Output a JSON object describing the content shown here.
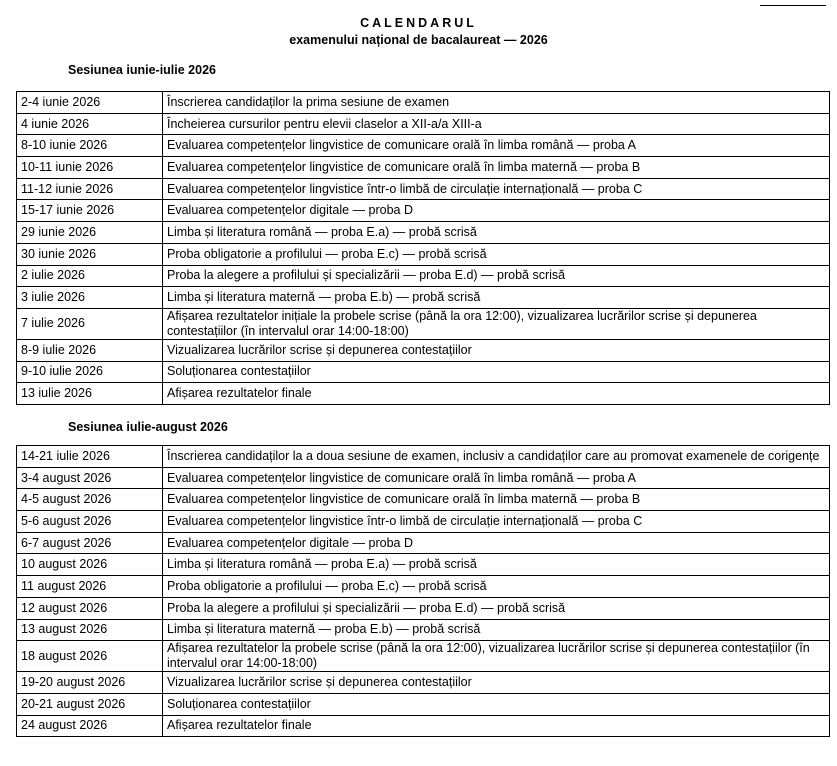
{
  "header": {
    "title": "CALENDARUL",
    "subtitle": "examenului național de bacalaureat — 2026"
  },
  "sessions": [
    {
      "title": "Sesiunea iunie-iulie 2026",
      "rows": [
        {
          "date": "2-4 iunie 2026",
          "event": "Înscrierea candidaților la prima sesiune de examen"
        },
        {
          "date": "4 iunie 2026",
          "event": "Încheierea cursurilor pentru elevii claselor a XII-a/a XIII-a"
        },
        {
          "date": "8-10 iunie 2026",
          "event": "Evaluarea competențelor lingvistice de comunicare orală în limba română — proba A"
        },
        {
          "date": "10-11 iunie 2026",
          "event": "Evaluarea competențelor lingvistice de comunicare orală în limba maternă — proba B"
        },
        {
          "date": "11-12 iunie 2026",
          "event": "Evaluarea competențelor lingvistice într-o limbă de circulație internațională — proba C"
        },
        {
          "date": "15-17 iunie 2026",
          "event": "Evaluarea competențelor digitale — proba D"
        },
        {
          "date": "29 iunie 2026",
          "event": "Limba și literatura română — proba E.a) — probă scrisă"
        },
        {
          "date": "30 iunie 2026",
          "event": "Proba obligatorie a profilului — proba E.c) — probă scrisă"
        },
        {
          "date": "2 iulie 2026",
          "event": "Proba la alegere a profilului și specializării — proba E.d) — probă scrisă"
        },
        {
          "date": "3 iulie 2026",
          "event": "Limba și literatura maternă — proba E.b) — probă scrisă"
        },
        {
          "date": "7 iulie 2026",
          "event": "Afișarea rezultatelor inițiale la probele scrise (până la ora 12:00), vizualizarea lucrărilor scrise și depunerea contestațiilor (în intervalul orar 14:00-18:00)"
        },
        {
          "date": "8-9 iulie 2026",
          "event": "Vizualizarea lucrărilor scrise și depunerea contestațiilor"
        },
        {
          "date": "9-10 iulie 2026",
          "event": "Soluționarea contestațiilor"
        },
        {
          "date": "13 iulie 2026",
          "event": "Afișarea rezultatelor finale"
        }
      ]
    },
    {
      "title": "Sesiunea iulie-august 2026",
      "rows": [
        {
          "date": "14-21 iulie 2026",
          "event": "Înscrierea candidaților la a doua sesiune de examen, inclusiv a candidaților care au promovat examenele de corigențe"
        },
        {
          "date": "3-4 august 2026",
          "event": "Evaluarea competențelor lingvistice de comunicare orală în limba română — proba A"
        },
        {
          "date": "4-5 august 2026",
          "event": "Evaluarea competențelor lingvistice de comunicare orală în limba maternă — proba B"
        },
        {
          "date": "5-6 august 2026",
          "event": "Evaluarea competențelor lingvistice într-o limbă de circulație internațională — proba C"
        },
        {
          "date": "6-7 august 2026",
          "event": "Evaluarea competențelor digitale — proba D"
        },
        {
          "date": "10 august 2026",
          "event": "Limba și literatura română — proba E.a) — probă scrisă"
        },
        {
          "date": "11 august 2026",
          "event": "Proba obligatorie a profilului — proba E.c) — probă scrisă"
        },
        {
          "date": "12 august 2026",
          "event": "Proba la alegere a profilului și specializării — proba E.d) — probă scrisă"
        },
        {
          "date": "13 august 2026",
          "event": "Limba și literatura maternă — proba E.b) — probă scrisă"
        },
        {
          "date": "18 august 2026",
          "event": "Afișarea rezultatelor la probele scrise (până la ora 12:00), vizualizarea lucrărilor scrise și depunerea contestațiilor (în intervalul orar 14:00-18:00)"
        },
        {
          "date": "19-20 august 2026",
          "event": "Vizualizarea lucrărilor scrise și depunerea contestațiilor"
        },
        {
          "date": "20-21 august 2026",
          "event": "Soluționarea contestațiilor"
        },
        {
          "date": "24 august 2026",
          "event": "Afișarea rezultatelor finale"
        }
      ]
    }
  ]
}
